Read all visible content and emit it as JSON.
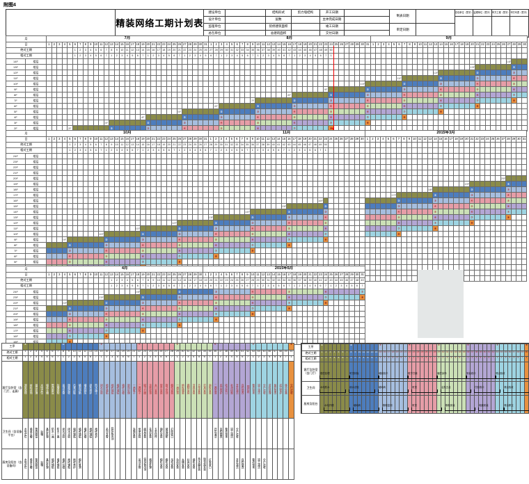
{
  "figure_label": "附图4",
  "title": "精装网络工期计划表",
  "info": {
    "left_labels": [
      "建设单位",
      "设计单位",
      "监理单位",
      "总包单位"
    ],
    "mid_labels": [
      "结构形式",
      "层数",
      "装修建筑面积",
      "总建筑面积"
    ],
    "mid_values": [
      "剪力墙结构",
      "",
      "",
      ""
    ],
    "date_labels": [
      "开工日期",
      "主体完成日期",
      "竣工日期",
      "交付日期"
    ],
    "right_labels": [
      "制表日期",
      "审定日期"
    ],
    "signoff_headers": [
      "总包单位（签字）",
      "监理单位（签字）",
      "甲方工程（签字）",
      "甲方代表（签字）"
    ]
  },
  "grid_labels": {
    "month": "月",
    "day": "日",
    "abs": "绝对工期",
    "rel": "相对工期",
    "unit": "楼层"
  },
  "chart_data": {
    "type": "gantt",
    "cycle_days": 50,
    "segment_length_days": 7,
    "floor_offset_days": 7,
    "segments": [
      {
        "color": "#8a8b49",
        "mark": "①",
        "days": 7
      },
      {
        "color": "#4d7dbd",
        "mark": "②",
        "days": 7
      },
      {
        "color": "#a6bedf",
        "mark": "③",
        "days": 7
      },
      {
        "color": "#e69da7",
        "mark": "④",
        "days": 7
      },
      {
        "color": "#cbe0b6",
        "mark": "⑤",
        "days": 7
      },
      {
        "color": "#b3a6d4",
        "mark": "⑥",
        "days": 7
      },
      {
        "color": "#9ed4e2",
        "mark": "⑦",
        "days": 7
      },
      {
        "color": "#e8913f",
        "mark": "⑧",
        "days": 1
      }
    ],
    "red_line_color": "#ee0000",
    "sections": [
      {
        "id": 1,
        "months": [
          [
            "7月",
            31
          ],
          [
            "8月",
            31
          ],
          [
            "9月",
            30
          ]
        ],
        "total": 92,
        "numbering": {
          "start": 6,
          "count": 50
        },
        "red_line_col": 55,
        "rows": [
          [
            "14F",
            90
          ],
          [
            "13F",
            83
          ],
          [
            "12F",
            76
          ],
          [
            "11F",
            69
          ],
          [
            "10F",
            62
          ],
          [
            "9F",
            55
          ],
          [
            "8F",
            48
          ],
          [
            "7F",
            41
          ],
          [
            "6F",
            34
          ],
          [
            "5F",
            27
          ],
          [
            "4F",
            20
          ],
          [
            "3F",
            13
          ],
          [
            "2F",
            6
          ]
        ]
      },
      {
        "id": 2,
        "months": [
          [
            "10月",
            31
          ],
          [
            "11月",
            30
          ],
          [
            "2015年3月",
            31
          ]
        ],
        "total": 92,
        "numbering": {
          "start": 5,
          "count": 50
        },
        "winter_break": {
          "stop": 54,
          "resume": 62
        },
        "rows": [
          [
            "24F",
            110
          ],
          [
            "23F",
            103
          ],
          [
            "22F",
            96
          ],
          [
            "21F",
            89
          ],
          [
            "20F",
            82
          ],
          [
            "19F",
            75
          ],
          [
            "18F",
            68
          ],
          [
            "17F",
            61
          ],
          [
            "16F",
            54
          ],
          [
            "15F",
            47
          ],
          [
            "14F",
            40
          ],
          [
            "13F",
            33
          ],
          [
            "12F",
            26
          ],
          [
            "11F",
            19
          ],
          [
            "10F",
            12
          ],
          [
            "9F",
            5
          ],
          [
            "8F",
            -2
          ],
          [
            "7F",
            -9
          ],
          [
            "6F",
            -16
          ],
          [
            "5F",
            -23
          ],
          [
            "4F",
            -30
          ],
          [
            "3F",
            -37
          ],
          [
            "2F",
            -44
          ]
        ]
      },
      {
        "id": 3,
        "months": [
          [
            "4月",
            30
          ],
          [
            "2015年5月",
            31
          ]
        ],
        "total": 61,
        "numbering": {
          "start": 13,
          "count": 49
        },
        "rows": [
          [
            "24F",
            19
          ],
          [
            "23F",
            12
          ],
          [
            "22F",
            5
          ],
          [
            "21F",
            -2
          ],
          [
            "20F",
            -9
          ],
          [
            "19F",
            -16
          ],
          [
            "18F",
            -23
          ],
          [
            "17F",
            -30
          ],
          [
            "16F",
            -37
          ],
          [
            "15F",
            -44
          ]
        ]
      }
    ],
    "legend_left": {
      "labels": [
        "工序",
        "绝对工期",
        "相对工期",
        "客厅及卧室（含门厅、走廊）",
        "卫生间（含设备平台）",
        "厨房及阳台（含设备间）"
      ],
      "main_tasks": [
        "测量放线",
        "材料进场",
        "基层处理",
        "水电定位",
        "墙体开槽",
        "管线敷设",
        "封槽隐检",
        "吊顶龙骨",
        "隐蔽验收",
        "石膏封板",
        "墙面冲筋",
        "墙面抹灰",
        "抹灰养护",
        "防水施工",
        "闭水试验",
        "地砖铺贴",
        "地砖铺贴",
        "墙砖铺贴",
        "墙砖勾缝",
        "阴角处理",
        "一遍腻子",
        "二遍腻子",
        "腻子打磨",
        "涂刷底漆",
        "木门安装",
        "窗台安装",
        "厨卫吊顶",
        "橱柜安装",
        "一遍面漆",
        "地板铺装",
        "踢脚安装",
        "洁具安装",
        "五金安装",
        "灯具安装",
        "面板安装",
        "二遍面漆",
        "成品保护",
        "收边收口",
        "补漆修整",
        "开荒清洁",
        "自检整改",
        "预验收",
        "整改销项",
        "竣工清洁",
        "分户验收",
        "资料整理",
        "复验整改",
        "成品保护",
        "移交准备",
        "交付验收"
      ],
      "bath_tasks": [
        "水电定位",
        "墙体开槽",
        "管线敷设",
        "封槽",
        "基层处理",
        "防水一遍",
        "防水二遍",
        "闭水试验",
        "闭水试验",
        "墙砖铺贴",
        "墙砖铺贴",
        "墙砖勾缝",
        "地砖铺贴",
        "地砖养护",
        "",
        "吊顶龙骨",
        "铝扣板吊顶",
        "",
        "",
        "",
        "浴霸安装",
        "坐便安装",
        "面盆安装",
        "花洒安装",
        "五金挂件",
        "镜柜安装",
        "玻璃隔断",
        "打胶收口",
        "",
        "",
        "",
        "",
        "",
        "",
        "",
        "开荒清洁",
        "自检整改",
        "整改销项",
        "竣工清洁",
        "分户验收",
        "",
        "",
        "",
        "",
        "",
        "",
        "",
        "",
        "",
        ""
      ],
      "kitchen_tasks": [
        "水电定位",
        "墙体开槽",
        "管线敷设",
        "封槽",
        "基层处理",
        "墙砖铺贴",
        "墙砖铺贴",
        "墙砖勾缝",
        "地砖铺贴",
        "地砖养护",
        "橱柜复测",
        "",
        "",
        "",
        "",
        "",
        "",
        "",
        "",
        "",
        "",
        "吊顶龙骨",
        "铝扣板吊顶",
        "烟道处理",
        "",
        "橱柜安装",
        "橱柜安装",
        "吊柜安装",
        "台面安装",
        "水槽安装",
        "灶具安装",
        "烟机安装",
        "热水器安装",
        "晾衣架安装",
        "打胶收口",
        "",
        "",
        "",
        "",
        "开荒清洁",
        "自检整改",
        "",
        "整改销项",
        "竣工清洁",
        "分户验收",
        "",
        "",
        "",
        "",
        ""
      ]
    },
    "legend_right": {
      "labels": [
        "工序",
        "绝对工期",
        "相对工期",
        "客厅及卧室（含门厅）",
        "卫生间",
        "厨房及阳台"
      ],
      "spans": {
        "living": [
          [
            1,
            7,
            "基层处理"
          ],
          [
            8,
            7,
            "吊顶封板"
          ],
          [
            15,
            7,
            "墙面找平"
          ],
          [
            22,
            7,
            "腻子打磨"
          ],
          [
            29,
            7,
            "面层涂饰"
          ],
          [
            36,
            7,
            "安装收口"
          ],
          [
            43,
            8,
            "清洁验收"
          ]
        ],
        "bath": [
          [
            1,
            6,
            "水电防水"
          ],
          [
            8,
            6,
            "闭水试验"
          ],
          [
            15,
            7,
            "墙地砖"
          ],
          [
            23,
            6,
            "吊顶"
          ],
          [
            30,
            7,
            "洁具五金"
          ],
          [
            38,
            6,
            "打胶收口"
          ],
          [
            45,
            6,
            "清洁验收"
          ]
        ],
        "kitchen": [
          [
            2,
            6,
            "水电开槽"
          ],
          [
            9,
            6,
            "墙地砖"
          ],
          [
            16,
            6,
            "橱柜复测"
          ],
          [
            23,
            7,
            "吊顶"
          ],
          [
            31,
            7,
            "橱柜安装"
          ],
          [
            39,
            6,
            "电器安装"
          ],
          [
            45,
            6,
            "清洁移交"
          ]
        ]
      }
    }
  }
}
